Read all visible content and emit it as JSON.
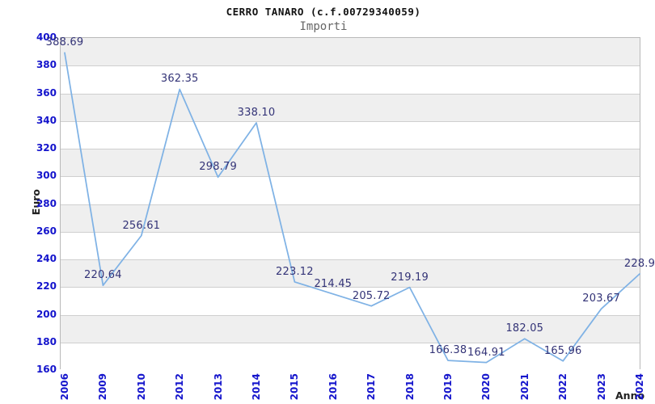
{
  "chart_data": {
    "type": "line",
    "title": "CERRO TANARO (c.f.00729340059)",
    "subtitle": "Importi",
    "xlabel": "Anno",
    "ylabel": "Euro",
    "categories": [
      "2006",
      "2009",
      "2010",
      "2012",
      "2013",
      "2014",
      "2015",
      "2016",
      "2017",
      "2018",
      "2019",
      "2020",
      "2021",
      "2022",
      "2023",
      "2024"
    ],
    "values": [
      388.69,
      220.64,
      256.61,
      362.35,
      298.79,
      338.1,
      223.12,
      214.45,
      205.72,
      219.19,
      166.38,
      164.91,
      182.05,
      165.96,
      203.67,
      228.9
    ],
    "point_labels": [
      "388.69",
      "220.64",
      "256.61",
      "362.35",
      "298.79",
      "338.10",
      "223.12",
      "214.45",
      "205.72",
      "219.19",
      "166.38",
      "164.91",
      "182.05",
      "165.96",
      "203.67",
      "228.9"
    ],
    "ylim": [
      160,
      400
    ],
    "ytick_step": 20,
    "ytick_labels": [
      "400",
      "380",
      "360",
      "340",
      "320",
      "300",
      "280",
      "260",
      "240",
      "220",
      "200",
      "180",
      "160"
    ],
    "grid": "horizontal-bands-alternating",
    "legend": "none",
    "colors": {
      "line": "#7fb2e5",
      "tick_label": "#1414cc",
      "data_label": "#333377",
      "band_gray": "#efefef",
      "grid_line": "#cfcfcf",
      "plot_border": "#b9b9b9",
      "title": "#111111",
      "subtitle": "#666666",
      "axis_title": "#222222"
    }
  }
}
